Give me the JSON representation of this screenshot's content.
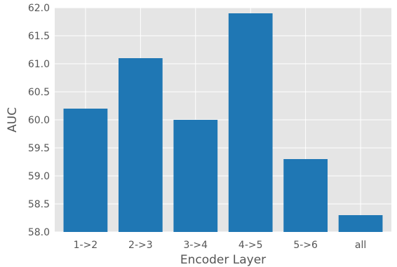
{
  "chart_data": {
    "type": "bar",
    "categories": [
      "1->2",
      "2->3",
      "3->4",
      "4->5",
      "5->6",
      "all"
    ],
    "values": [
      60.2,
      61.1,
      60.0,
      61.9,
      59.3,
      58.3
    ],
    "title": "",
    "xlabel": "Encoder Layer",
    "ylabel": "AUC",
    "ylim": [
      58.0,
      62.0
    ],
    "yticks": [
      "58.0",
      "58.5",
      "59.0",
      "59.5",
      "60.0",
      "60.5",
      "61.0",
      "61.5",
      "62.0"
    ],
    "grid": true,
    "colors": {
      "bar": "#1f77b4",
      "background": "#e5e5e5",
      "grid": "#ffffff",
      "text": "#555555"
    }
  }
}
